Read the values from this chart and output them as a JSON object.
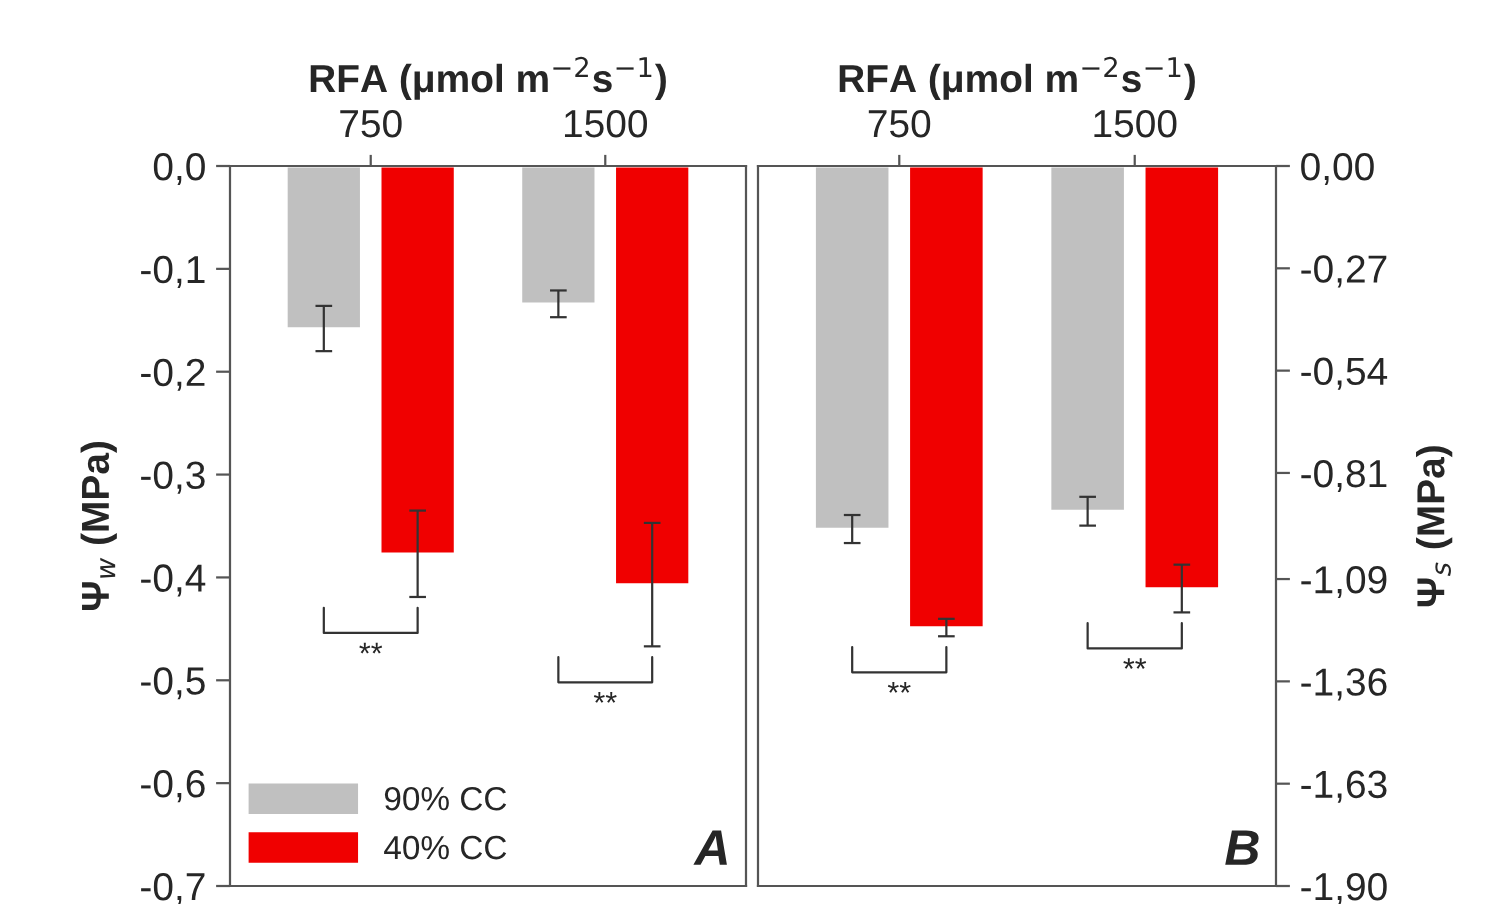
{
  "chart_data": [
    {
      "type": "bar",
      "categories": [
        "750",
        "1500"
      ],
      "xlabel": "RFA (μmol m$^{−2}$s$^{−1}$)",
      "ylabel": "Ψ$_{w}$ (MPa)",
      "series": [
        {
          "name": "90% CC",
          "color": "#c0c0c0",
          "values": [
            -0.158,
            -0.134
          ],
          "errors": [
            0.022,
            0.013
          ]
        },
        {
          "name": "40% CC",
          "color": "#f00000",
          "values": [
            -0.377,
            -0.407
          ],
          "errors": [
            0.042,
            0.06
          ]
        }
      ],
      "ylim": [
        -0.7,
        0
      ],
      "yticks": [
        {
          "value": 0,
          "label": "0,0"
        },
        {
          "value": -0.1,
          "label": "-0,1"
        },
        {
          "value": -0.2,
          "label": "-0,2"
        },
        {
          "value": -0.3,
          "label": "-0,3"
        },
        {
          "value": -0.4,
          "label": "-0,4"
        },
        {
          "value": -0.5,
          "label": "-0,5"
        },
        {
          "value": -0.6,
          "label": "-0,6"
        },
        {
          "value": -0.7,
          "label": "-0,7"
        }
      ],
      "legend": "bottom left",
      "annotations": [
        "A",
        "**",
        "**"
      ]
    },
    {
      "type": "bar",
      "categories": [
        "750",
        "1500"
      ],
      "xlabel": "RFA (μmol m$^{−2}$s$^{−1}$)",
      "y2label": "Ψ$_{s}$ (MPa)",
      "series": [
        {
          "color": "#c0c0c0",
          "values": [
            -0.958,
            -0.911
          ],
          "errors": [
            0.037,
            0.038
          ],
          "axis": "y2"
        },
        {
          "color": "#f00000",
          "values": [
            -1.218,
            -1.115
          ],
          "errors": [
            0.023,
            0.063
          ],
          "axis": "y2"
        }
      ],
      "y2lim": [
        -1.9,
        0
      ],
      "y2ticks": [
        {
          "value": 0,
          "label": "0,00"
        },
        {
          "value": -0.27,
          "label": "-0,27"
        },
        {
          "value": -0.54,
          "label": "-0,54"
        },
        {
          "value": -0.81,
          "label": "-0,81"
        },
        {
          "value": -1.09,
          "label": "-1,09"
        },
        {
          "value": -1.36,
          "label": "-1,36"
        },
        {
          "value": -1.63,
          "label": "-1,63"
        },
        {
          "value": -1.9,
          "label": "-1,90"
        }
      ],
      "annotations": [
        "B",
        "**",
        "**"
      ]
    }
  ]
}
